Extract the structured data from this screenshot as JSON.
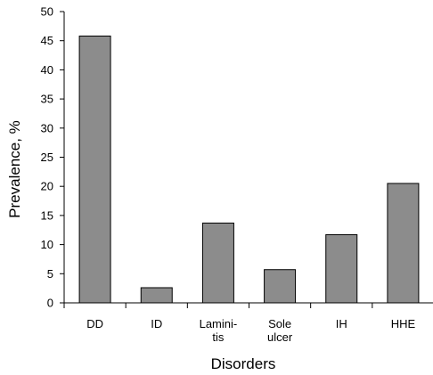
{
  "chart_data": {
    "type": "bar",
    "categories": [
      [
        "DD"
      ],
      [
        "ID"
      ],
      [
        "Lamini-",
        "tis"
      ],
      [
        "Sole",
        "ulcer"
      ],
      [
        "IH"
      ],
      [
        "HHE"
      ]
    ],
    "values": [
      45.8,
      2.6,
      13.7,
      5.7,
      11.7,
      20.5
    ],
    "xlabel": "Disorders",
    "ylabel": "Prevalence, %",
    "ylim": [
      0,
      50
    ],
    "yticks": [
      0,
      5,
      10,
      15,
      20,
      25,
      30,
      35,
      40,
      45,
      50
    ],
    "grid": false,
    "legend": "none",
    "bar_color": "#8c8c8c"
  }
}
